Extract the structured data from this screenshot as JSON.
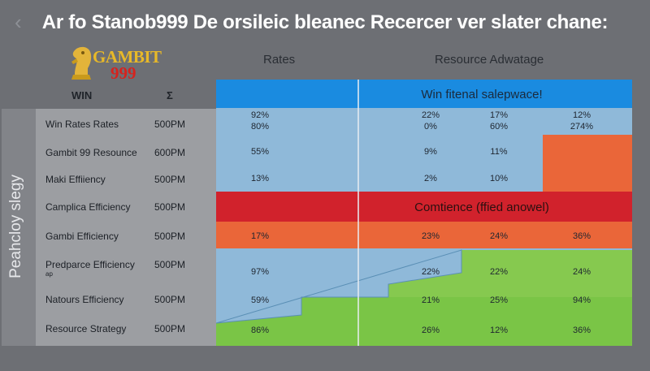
{
  "header": {
    "title": "Ar fo Stanob999 De orsileic bleanec Recercer ver slater chane:",
    "logo_word": "GAMBIT",
    "logo_number": "999",
    "rates_heading": "Rates",
    "resource_heading": "Resource Adwatage",
    "win_col": "WIN",
    "sigma_col": "Σ"
  },
  "sidebar": {
    "vertical_label": "Peahcloy slegy"
  },
  "rows": [
    {
      "label": "Win Rates Rates",
      "time": "500PM"
    },
    {
      "label": "Gambit 99 Resounce",
      "time": "600PM"
    },
    {
      "label": "Maki Effiiency",
      "time": "500PM"
    },
    {
      "label": "Camplica Efficiency",
      "time": "500PM"
    },
    {
      "label": "Gambi Efficiency",
      "time": "500PM"
    },
    {
      "label": "Predparce Efficiency",
      "sub": "ap",
      "time": "500PM"
    },
    {
      "label": "Natours Efficiency",
      "time": "500PM"
    },
    {
      "label": "Resource Strategy",
      "time": "500PM"
    }
  ],
  "colors": {
    "blue_band": "#1a8be0",
    "light_blue": "#8fb9d9",
    "orange": "#ea6639",
    "red": "#d1222c",
    "light_green": "#86c94f",
    "green": "#71c140"
  },
  "chart_data": {
    "type": "table",
    "banners": [
      {
        "text": "Win fitenal salepwace!",
        "row": "top"
      },
      {
        "text": "Comtience (ffied anowel)",
        "row": 3
      }
    ],
    "columns": [
      "c1",
      "c2",
      "c3",
      "c4"
    ],
    "cells": [
      [
        [
          "92%",
          "80%"
        ],
        [
          "22%",
          "0%"
        ],
        [
          "17%",
          "60%"
        ],
        [
          "12%",
          "274%"
        ]
      ],
      [
        [
          "55%"
        ],
        [
          "9%"
        ],
        [
          "11%"
        ],
        [
          ""
        ]
      ],
      [
        [
          "13%"
        ],
        [
          "2%"
        ],
        [
          "10%"
        ],
        [
          ""
        ]
      ],
      [
        [
          ""
        ],
        [
          ""
        ],
        [
          ""
        ],
        [
          ""
        ]
      ],
      [
        [
          "17%"
        ],
        [
          "23%"
        ],
        [
          "24%"
        ],
        [
          "36%"
        ]
      ],
      [
        [
          "97%"
        ],
        [
          "22%"
        ],
        [
          "22%"
        ],
        [
          "24%"
        ]
      ],
      [
        [
          "59%"
        ],
        [
          "21%"
        ],
        [
          "25%"
        ],
        [
          "94%"
        ]
      ],
      [
        [
          "86%"
        ],
        [
          "26%"
        ],
        [
          "12%"
        ],
        [
          "36%"
        ]
      ]
    ]
  }
}
